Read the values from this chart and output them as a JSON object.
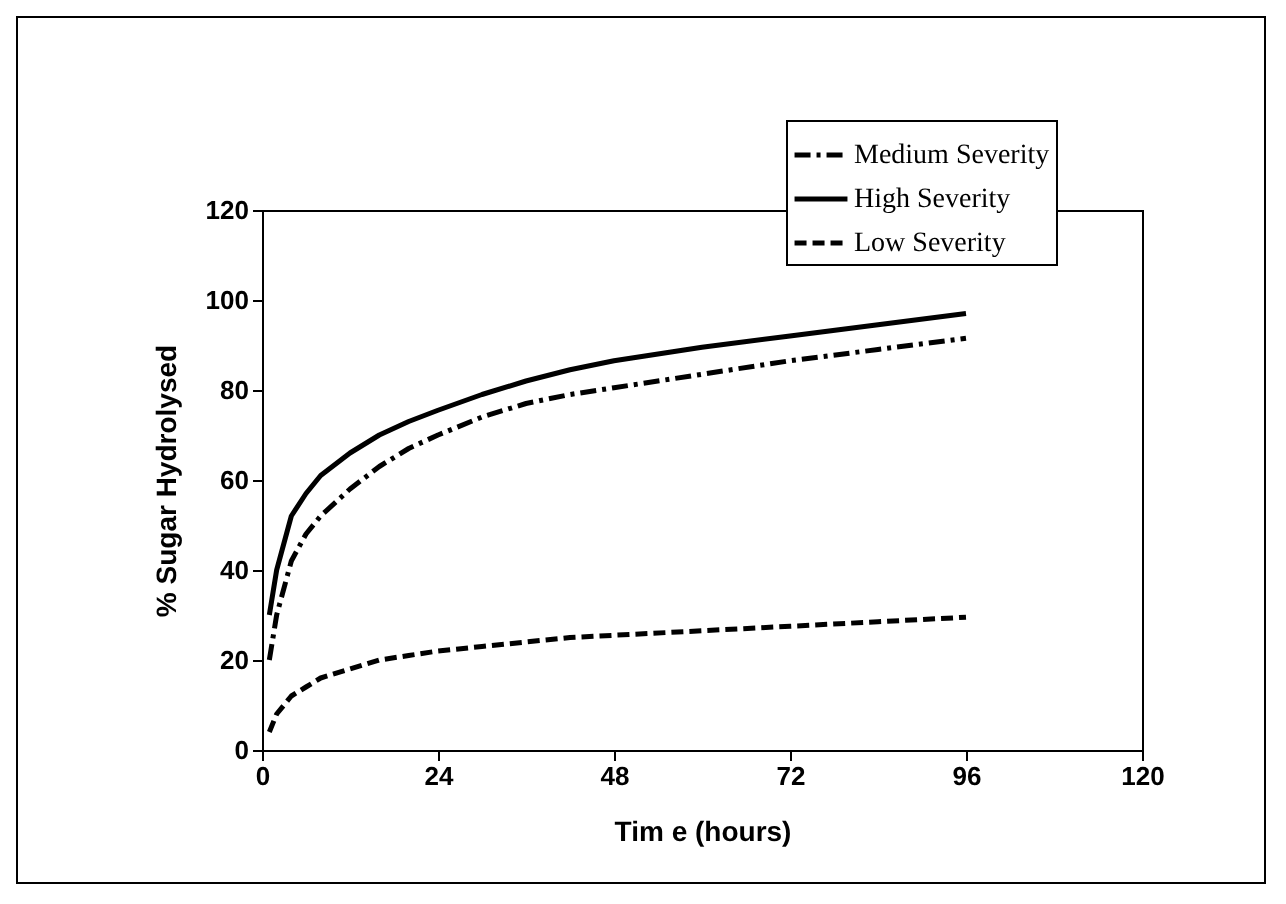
{
  "chart_data": {
    "type": "line",
    "xlabel": "Tim e (hours)",
    "ylabel": "% Sugar Hydrolysed",
    "xlim": [
      0,
      120
    ],
    "xticks": [
      0,
      24,
      48,
      72,
      96,
      120
    ],
    "ylim": [
      0,
      120
    ],
    "yticks": [
      0,
      20,
      40,
      60,
      80,
      100,
      120
    ],
    "grid": false,
    "legend": "top right",
    "marker": "none",
    "x": [
      1,
      2,
      4,
      6,
      8,
      12,
      16,
      20,
      24,
      30,
      36,
      42,
      48,
      60,
      72,
      84,
      96
    ],
    "series": [
      {
        "name": "Medium Severity",
        "color": "#000000",
        "line_style": "dashdot",
        "values": [
          20,
          30,
          42,
          48,
          52,
          58,
          63,
          67,
          70,
          74,
          77,
          79,
          80.5,
          83.5,
          86.5,
          89,
          91.5
        ]
      },
      {
        "name": "High Severity",
        "color": "#000000",
        "line_style": "solid",
        "values": [
          30,
          40,
          52,
          57,
          61,
          66,
          70,
          73,
          75.5,
          79,
          82,
          84.5,
          86.5,
          89.5,
          92,
          94.5,
          97
        ]
      },
      {
        "name": "Low Severity",
        "color": "#000000",
        "line_style": "dashed",
        "values": [
          4,
          8,
          12,
          14,
          16,
          18,
          20,
          21,
          22,
          23,
          24,
          25,
          25.5,
          26.5,
          27.5,
          28.5,
          29.5
        ]
      }
    ]
  }
}
